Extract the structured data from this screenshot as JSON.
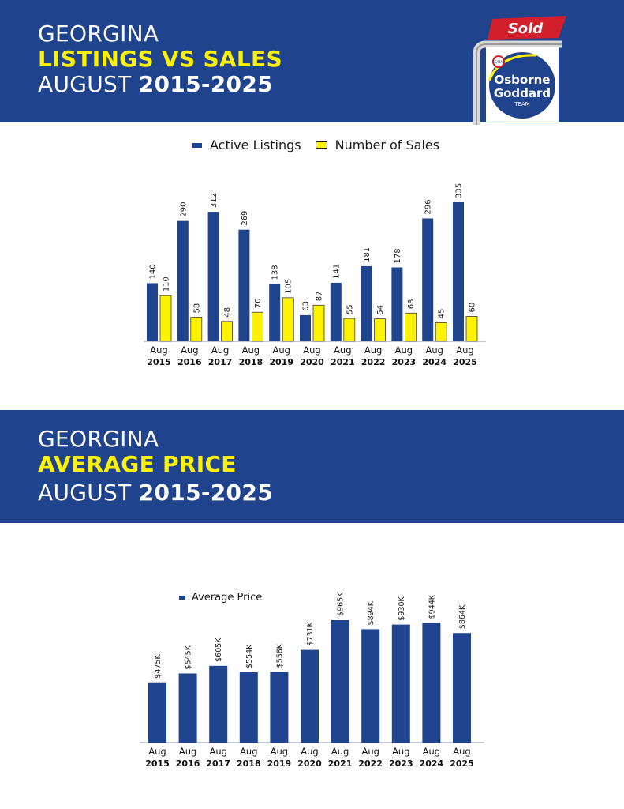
{
  "section1": {
    "line1": "GEORGINA",
    "line2": "LISTINGS VS SALES",
    "line3_prefix": "AUGUST ",
    "line3_years": "2015-2025"
  },
  "section2": {
    "line1": "GEORGINA",
    "line2": "AVERAGE PRICE",
    "line3_prefix": "AUGUST ",
    "line3_years": "2015-2025"
  },
  "logo": {
    "sign_text": "Sold",
    "brand_small": "RE/MAX",
    "brand_line1": "Osborne",
    "brand_line2": "Goddard",
    "brand_line3": "TEAM"
  },
  "colors": {
    "navy": "#1f438c",
    "yellow": "#fff200",
    "red": "#d31f2b"
  },
  "chart_data": [
    {
      "type": "bar",
      "title": "Listings vs Sales",
      "categories": [
        "Aug 2015",
        "Aug 2016",
        "Aug 2017",
        "Aug 2018",
        "Aug 2019",
        "Aug 2020",
        "Aug 2021",
        "Aug 2022",
        "Aug 2023",
        "Aug 2024",
        "Aug 2025"
      ],
      "category_top": [
        "Aug",
        "Aug",
        "Aug",
        "Aug",
        "Aug",
        "Aug",
        "Aug",
        "Aug",
        "Aug",
        "Aug",
        "Aug"
      ],
      "category_bottom": [
        "2015",
        "2016",
        "2017",
        "2018",
        "2019",
        "2020",
        "2021",
        "2022",
        "2023",
        "2024",
        "2025"
      ],
      "series": [
        {
          "name": "Active Listings",
          "color": "#1f438c",
          "values": [
            140,
            290,
            312,
            269,
            138,
            63,
            141,
            181,
            178,
            296,
            335
          ]
        },
        {
          "name": "Number of Sales",
          "color": "#fff200",
          "values": [
            110,
            58,
            48,
            70,
            105,
            87,
            55,
            54,
            68,
            45,
            60
          ]
        }
      ],
      "value_labels": [
        [
          "140",
          "290",
          "312",
          "269",
          "138",
          "63",
          "141",
          "181",
          "178",
          "296",
          "335"
        ],
        [
          "110",
          "58",
          "48",
          "70",
          "105",
          "87",
          "55",
          "54",
          "68",
          "45",
          "60"
        ]
      ],
      "legend": "top-center",
      "ylim": [
        0,
        335
      ]
    },
    {
      "type": "bar",
      "title": "Average Price",
      "categories": [
        "Aug 2015",
        "Aug 2016",
        "Aug 2017",
        "Aug 2018",
        "Aug 2019",
        "Aug 2020",
        "Aug 2021",
        "Aug 2022",
        "Aug 2023",
        "Aug 2024",
        "Aug 2025"
      ],
      "category_top": [
        "Aug",
        "Aug",
        "Aug",
        "Aug",
        "Aug",
        "Aug",
        "Aug",
        "Aug",
        "Aug",
        "Aug",
        "Aug"
      ],
      "category_bottom": [
        "2015",
        "2016",
        "2017",
        "2018",
        "2019",
        "2020",
        "2021",
        "2022",
        "2023",
        "2024",
        "2025"
      ],
      "series": [
        {
          "name": "Average Price",
          "color": "#1f438c",
          "values": [
            475,
            545,
            605,
            554,
            558,
            731,
            965,
            894,
            930,
            944,
            864
          ]
        }
      ],
      "value_labels": [
        [
          "$475K",
          "$545K",
          "$605K",
          "$554K",
          "$558K",
          "$731K",
          "$965K",
          "$894K",
          "$930K",
          "$944K",
          "$864K"
        ]
      ],
      "unit": "$K",
      "legend": "top-left",
      "ylim": [
        0,
        965
      ]
    }
  ]
}
